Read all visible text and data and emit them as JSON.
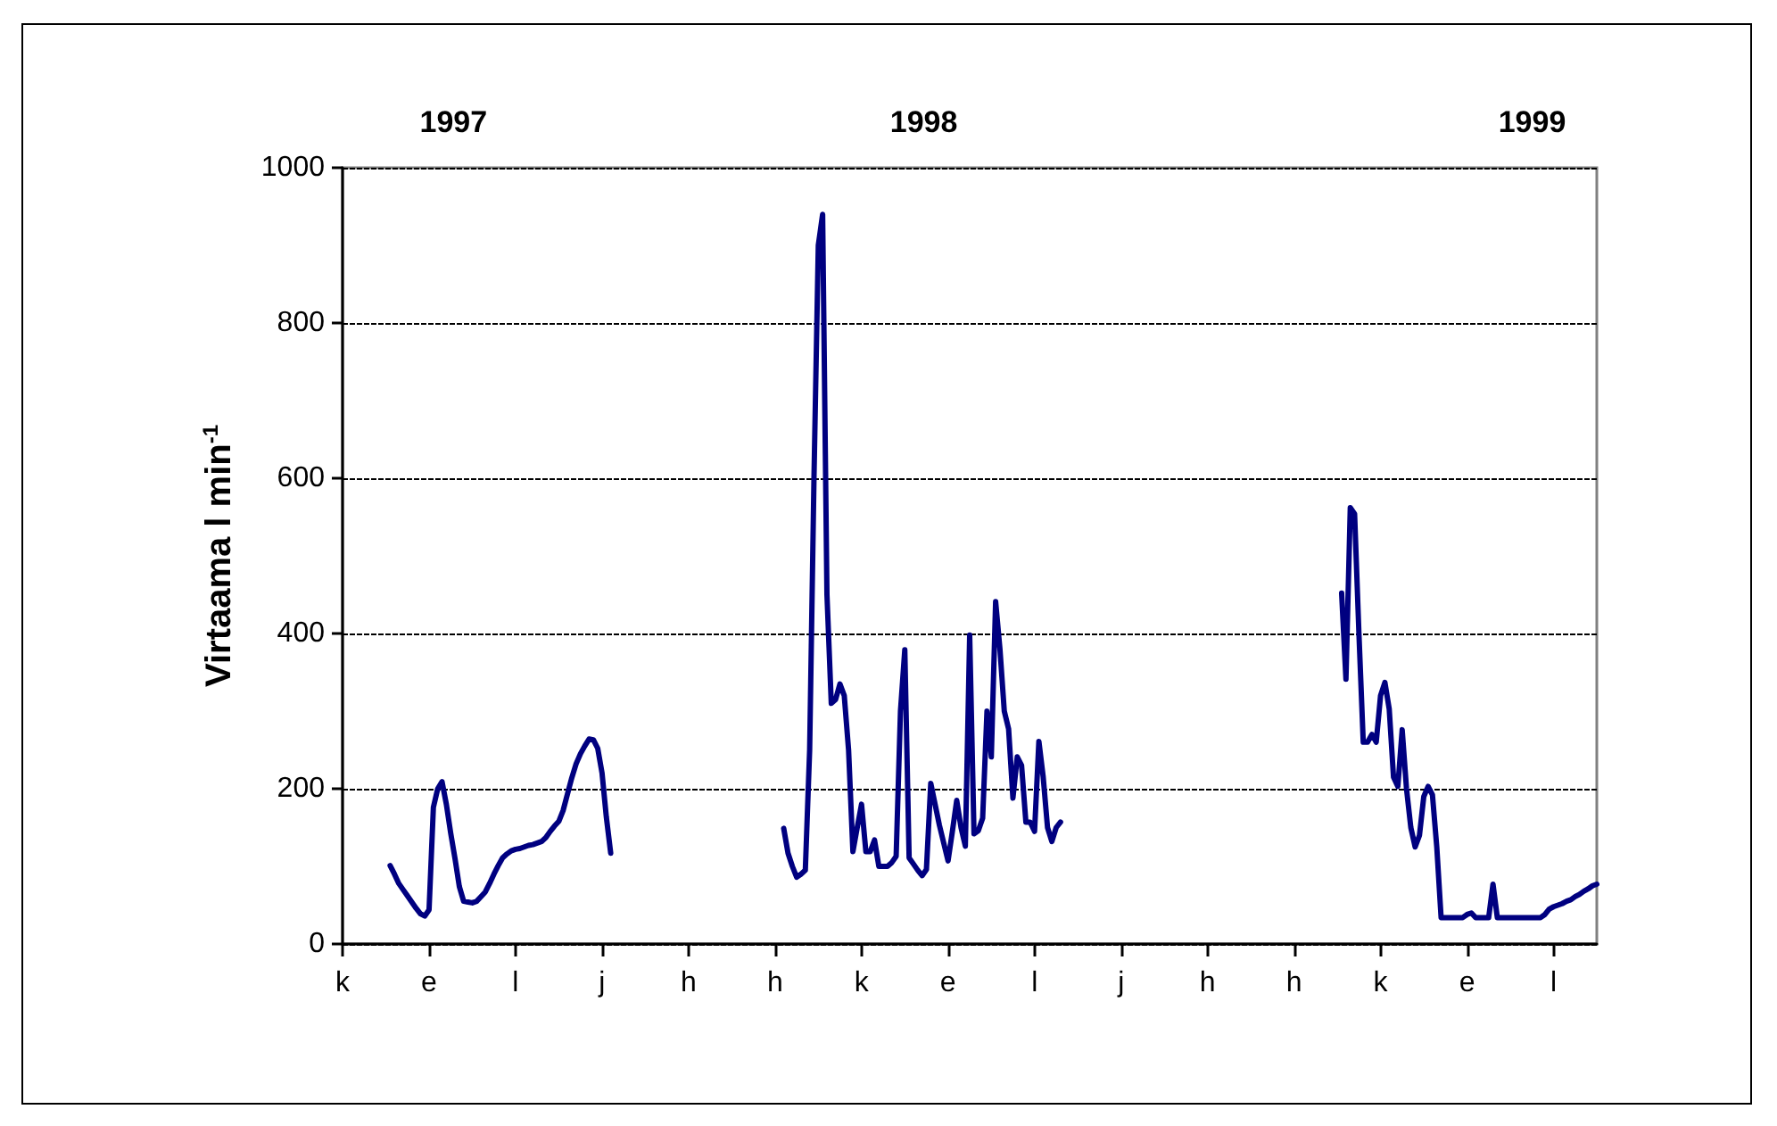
{
  "chart_data": {
    "type": "line",
    "ylabel": "Virtaama l min$^{-1}$",
    "annotations": [
      "1997",
      "1998",
      "1999"
    ],
    "categories": [
      "k",
      null,
      null,
      null,
      null,
      null,
      null,
      null,
      null,
      null,
      null,
      null,
      null,
      null,
      null,
      null,
      null,
      null,
      null,
      null,
      "e",
      null,
      null,
      null,
      null,
      null,
      null,
      null,
      null,
      null,
      null,
      null,
      null,
      null,
      null,
      null,
      null,
      null,
      null,
      null,
      "l",
      null,
      null,
      null,
      null,
      null,
      null,
      null,
      null,
      null,
      null,
      null,
      null,
      null,
      null,
      null,
      null,
      null,
      null,
      null,
      "j",
      null,
      null,
      null,
      null,
      null,
      null,
      null,
      null,
      null,
      null,
      null,
      null,
      null,
      null,
      null,
      null,
      null,
      null,
      null,
      "h",
      null,
      null,
      null,
      null,
      null,
      null,
      null,
      null,
      null,
      null,
      null,
      null,
      null,
      null,
      null,
      null,
      null,
      null,
      null,
      "h",
      null,
      null,
      null,
      null,
      null,
      null,
      null,
      null,
      null,
      null,
      null,
      null,
      null,
      null,
      null,
      null,
      null,
      null,
      null,
      "k",
      null,
      null,
      null,
      null,
      null,
      null,
      null,
      null,
      null,
      null,
      null,
      null,
      null,
      null,
      null,
      null,
      null,
      null,
      null,
      "e",
      null,
      null,
      null,
      null,
      null,
      null,
      null,
      null,
      null,
      null,
      null,
      null,
      null,
      null,
      null,
      null,
      null,
      null,
      null,
      "l",
      null,
      null,
      null,
      null,
      null,
      null,
      null,
      null,
      null,
      null,
      null,
      null,
      null,
      null,
      null,
      null,
      null,
      null,
      null,
      "j",
      null,
      null,
      null,
      null,
      null,
      null,
      null,
      null,
      null,
      null,
      null,
      null,
      null,
      null,
      null,
      null,
      null,
      null,
      null,
      "h",
      null,
      null,
      null,
      null,
      null,
      null,
      null,
      null,
      null,
      null,
      null,
      null,
      null,
      null,
      null,
      null,
      null,
      null,
      null,
      "h",
      null,
      null,
      null,
      null,
      null,
      null,
      null,
      null,
      null,
      null,
      null,
      null,
      null,
      null,
      null,
      null,
      null,
      null,
      null,
      "k",
      null,
      null,
      null,
      null,
      null,
      null,
      null,
      null,
      null,
      null,
      null,
      null,
      null,
      null,
      null,
      null,
      null,
      null,
      null,
      "e",
      null,
      null,
      null,
      null,
      null,
      null,
      null,
      null,
      null,
      null,
      null,
      null,
      null,
      null,
      null,
      null,
      null,
      null,
      null,
      "l",
      null,
      null,
      null,
      null,
      null,
      null,
      null,
      null,
      null,
      null
    ],
    "ylim": [
      0,
      1000
    ],
    "yticks": [
      0,
      200,
      400,
      600,
      800,
      1000
    ],
    "grid": "y",
    "marker": "none",
    "line_style": "solid",
    "series": [
      {
        "color": "#000080",
        "values": [
          null,
          null,
          null,
          null,
          null,
          null,
          null,
          null,
          null,
          null,
          null,
          101,
          90,
          78,
          70,
          62,
          54,
          46,
          39,
          36,
          44,
          176,
          200,
          209,
          180,
          143,
          110,
          74,
          55,
          54,
          53,
          55,
          61,
          67,
          78,
          90,
          101,
          111,
          116,
          120,
          122,
          123,
          125,
          127,
          128,
          130,
          132,
          137,
          145,
          152,
          158,
          172,
          193,
          214,
          232,
          245,
          255,
          264,
          263,
          252,
          220,
          163,
          117,
          null,
          null,
          null,
          null,
          null,
          null,
          null,
          null,
          null,
          null,
          null,
          null,
          null,
          null,
          null,
          null,
          null,
          null,
          null,
          null,
          null,
          null,
          null,
          null,
          null,
          null,
          null,
          null,
          null,
          null,
          null,
          null,
          null,
          null,
          null,
          null,
          null,
          null,
          null,
          149,
          117,
          100,
          86,
          90,
          95,
          250,
          600,
          900,
          940,
          450,
          310,
          315,
          335,
          320,
          250,
          119,
          150,
          180,
          119,
          119,
          134,
          100,
          100,
          100,
          105,
          113,
          300,
          379,
          111,
          103,
          95,
          88,
          96,
          207,
          180,
          153,
          130,
          107,
          145,
          185,
          150,
          126,
          398,
          142,
          146,
          162,
          300,
          241,
          441,
          380,
          300,
          277,
          188,
          241,
          230,
          157,
          157,
          145,
          261,
          215,
          150,
          132,
          150,
          157,
          null,
          null,
          null,
          null,
          null,
          null,
          null,
          null,
          null,
          null,
          null,
          null,
          null,
          null,
          null,
          null,
          null,
          null,
          null,
          null,
          null,
          null,
          null,
          null,
          null,
          null,
          null,
          null,
          null,
          null,
          null,
          null,
          null,
          null,
          null,
          null,
          null,
          null,
          null,
          null,
          null,
          null,
          null,
          null,
          null,
          null,
          null,
          null,
          null,
          null,
          null,
          null,
          null,
          null,
          null,
          null,
          null,
          null,
          null,
          null,
          null,
          null,
          null,
          null,
          452,
          341,
          562,
          554,
          400,
          260,
          260,
          270,
          260,
          320,
          337,
          303,
          215,
          203,
          276,
          200,
          150,
          125,
          140,
          190,
          203,
          192,
          125,
          34,
          34,
          34,
          34,
          34,
          34,
          38,
          40,
          34,
          34,
          34,
          34,
          77,
          34,
          34,
          34,
          34,
          34,
          34,
          34,
          34,
          34,
          34,
          34,
          38,
          45,
          48,
          50,
          52,
          55,
          57,
          61,
          64,
          68,
          71,
          75,
          77
        ]
      }
    ]
  }
}
